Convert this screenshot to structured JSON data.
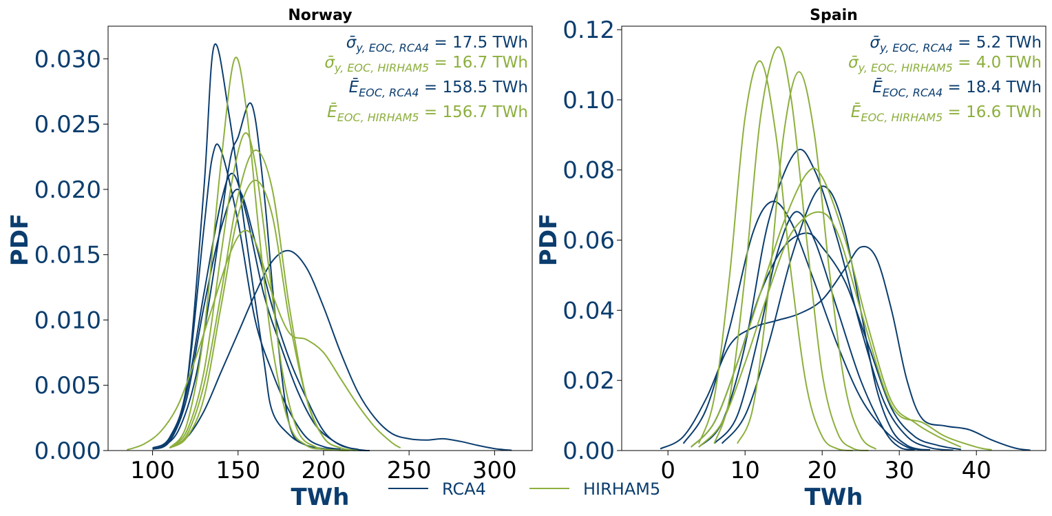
{
  "colors": {
    "RCA4": "#0b3d6e",
    "HIRHAM5": "#8caf3c",
    "text": "#0b3d6e",
    "frame": "#000000"
  },
  "legend": [
    {
      "name": "RCA4",
      "color": "#0b3d6e"
    },
    {
      "name": "HIRHAM5",
      "color": "#8caf3c"
    }
  ],
  "chart_data": [
    {
      "type": "line",
      "title": "Norway",
      "xlabel": "TWh",
      "ylabel": "PDF",
      "xlim": [
        74,
        322
      ],
      "ylim": [
        0,
        0.0325
      ],
      "xticks": [
        "100",
        "150",
        "200",
        "250",
        "300"
      ],
      "xtick_values": [
        100,
        150,
        200,
        250,
        300
      ],
      "yticks": [
        "0.000",
        "0.005",
        "0.010",
        "0.015",
        "0.020",
        "0.025",
        "0.030"
      ],
      "ytick_values": [
        0,
        0.005,
        0.01,
        0.015,
        0.02,
        0.025,
        0.03
      ],
      "annotations": [
        {
          "symbol": "σ̄",
          "sub": "y, EOC, RCA4",
          "value": "= 17.5 TWh",
          "series": "RCA4"
        },
        {
          "symbol": "σ̄",
          "sub": "y, EOC, HIRHAM5",
          "value": "= 16.7 TWh",
          "series": "HIRHAM5"
        },
        {
          "symbol": "Ē",
          "sub": "EOC, RCA4",
          "value": "= 158.5 TWh",
          "series": "RCA4"
        },
        {
          "symbol": "Ē",
          "sub": "EOC, HIRHAM5",
          "value": "= 156.7 TWh",
          "series": "HIRHAM5"
        }
      ],
      "series": [
        {
          "model": "RCA4",
          "x": [
            100,
            110,
            120,
            130,
            136,
            145,
            155,
            165,
            170,
            180,
            190,
            200,
            210,
            220,
            227
          ],
          "y": [
            0.0001,
            0.0009,
            0.005,
            0.02,
            0.031,
            0.0255,
            0.016,
            0.007,
            0.003,
            0.0012,
            0.0004,
            0.00015,
            5e-05,
            1e-05,
            0
          ]
        },
        {
          "model": "RCA4",
          "x": [
            105,
            115,
            125,
            135,
            145,
            150,
            158,
            165,
            172,
            180,
            190,
            200,
            210,
            215
          ],
          "y": [
            0.0002,
            0.0015,
            0.0055,
            0.013,
            0.022,
            0.024,
            0.0265,
            0.02,
            0.01,
            0.002,
            0.0004,
            0.0001,
            2e-05,
            0
          ]
        },
        {
          "model": "RCA4",
          "x": [
            100,
            110,
            120,
            130,
            135,
            140,
            150,
            160,
            170,
            180,
            190,
            200,
            210
          ],
          "y": [
            0.0002,
            0.001,
            0.005,
            0.017,
            0.0225,
            0.023,
            0.0175,
            0.01,
            0.006,
            0.003,
            0.001,
            0.0003,
            0.0001
          ]
        },
        {
          "model": "RCA4",
          "x": [
            100,
            110,
            120,
            130,
            140,
            147,
            155,
            165,
            175,
            185,
            195,
            205,
            215,
            225
          ],
          "y": [
            0.0001,
            0.0008,
            0.0045,
            0.012,
            0.019,
            0.0212,
            0.018,
            0.012,
            0.008,
            0.0045,
            0.002,
            0.0008,
            0.0002,
            0
          ]
        },
        {
          "model": "RCA4",
          "x": [
            110,
            120,
            130,
            140,
            150,
            160,
            170,
            180,
            190,
            200,
            210,
            220,
            230,
            240,
            250,
            260,
            270,
            280,
            290,
            300,
            310
          ],
          "y": [
            0.0002,
            0.001,
            0.003,
            0.006,
            0.009,
            0.012,
            0.0145,
            0.0153,
            0.014,
            0.011,
            0.0075,
            0.0045,
            0.0025,
            0.0013,
            0.0009,
            0.0008,
            0.0009,
            0.0007,
            0.0004,
            0.00015,
            2e-05
          ]
        },
        {
          "model": "RCA4",
          "x": [
            100,
            110,
            120,
            130,
            140,
            150,
            160,
            170,
            180,
            190,
            200,
            210,
            220
          ],
          "y": [
            0.0001,
            0.0007,
            0.004,
            0.011,
            0.017,
            0.02,
            0.016,
            0.011,
            0.007,
            0.004,
            0.0015,
            0.0004,
            0.0001
          ]
        },
        {
          "model": "HIRHAM5",
          "x": [
            110,
            120,
            130,
            140,
            148,
            155,
            162,
            170,
            180,
            190,
            200,
            210,
            215
          ],
          "y": [
            0.0002,
            0.002,
            0.009,
            0.022,
            0.03,
            0.026,
            0.017,
            0.008,
            0.002,
            0.0004,
            0.0001,
            2e-05,
            0
          ]
        },
        {
          "model": "HIRHAM5",
          "x": [
            110,
            120,
            130,
            140,
            147,
            154,
            160,
            168,
            176,
            185,
            195,
            205,
            215
          ],
          "y": [
            0.0002,
            0.0015,
            0.006,
            0.015,
            0.021,
            0.0243,
            0.022,
            0.014,
            0.006,
            0.0015,
            0.0003,
            5e-05,
            0
          ]
        },
        {
          "model": "HIRHAM5",
          "x": [
            110,
            120,
            130,
            140,
            150,
            160,
            170,
            180,
            190,
            200,
            210,
            220
          ],
          "y": [
            0.0002,
            0.0012,
            0.005,
            0.012,
            0.0195,
            0.023,
            0.02,
            0.011,
            0.004,
            0.001,
            0.0002,
            0
          ]
        },
        {
          "model": "HIRHAM5",
          "x": [
            110,
            120,
            130,
            140,
            150,
            160,
            170,
            180,
            190,
            200,
            210,
            220
          ],
          "y": [
            0.0002,
            0.001,
            0.004,
            0.011,
            0.018,
            0.0207,
            0.018,
            0.01,
            0.004,
            0.001,
            0.0002,
            0
          ]
        },
        {
          "model": "HIRHAM5",
          "x": [
            85,
            95,
            105,
            115,
            125,
            135,
            145,
            153,
            160,
            170,
            180,
            190,
            200,
            210,
            220,
            230,
            240,
            245
          ],
          "y": [
            5e-05,
            0.0005,
            0.0015,
            0.0035,
            0.007,
            0.011,
            0.015,
            0.0168,
            0.016,
            0.012,
            0.009,
            0.0085,
            0.0075,
            0.0055,
            0.0035,
            0.0018,
            0.0006,
            0.0002
          ]
        }
      ]
    },
    {
      "type": "line",
      "title": "Spain",
      "xlabel": "TWh",
      "ylabel": "PDF",
      "xlim": [
        -6,
        49
      ],
      "ylim": [
        0,
        0.121
      ],
      "xticks": [
        "0",
        "10",
        "20",
        "30",
        "40"
      ],
      "xtick_values": [
        0,
        10,
        20,
        30,
        40
      ],
      "yticks": [
        "0.00",
        "0.02",
        "0.04",
        "0.06",
        "0.08",
        "0.10",
        "0.12"
      ],
      "ytick_values": [
        0,
        0.02,
        0.04,
        0.06,
        0.08,
        0.1,
        0.12
      ],
      "annotations": [
        {
          "symbol": "σ̄",
          "sub": "y, EOC, RCA4",
          "value": "= 5.2 TWh",
          "series": "RCA4"
        },
        {
          "symbol": "σ̄",
          "sub": "y, EOC, HIRHAM5",
          "value": "= 4.0 TWh",
          "series": "HIRHAM5"
        },
        {
          "symbol": "Ē",
          "sub": "EOC, RCA4",
          "value": "= 18.4 TWh",
          "series": "RCA4"
        },
        {
          "symbol": "Ē",
          "sub": "EOC, HIRHAM5",
          "value": "= 16.6 TWh",
          "series": "HIRHAM5"
        }
      ],
      "series": [
        {
          "model": "RCA4",
          "x": [
            2,
            5,
            8,
            11,
            13.5,
            16,
            19,
            22,
            25,
            28,
            31,
            34
          ],
          "y": [
            0.002,
            0.012,
            0.035,
            0.062,
            0.071,
            0.065,
            0.048,
            0.03,
            0.015,
            0.006,
            0.001,
            0.0002
          ]
        },
        {
          "model": "RCA4",
          "x": [
            4,
            7,
            10,
            13,
            16.5,
            19,
            22,
            25,
            28,
            31,
            34,
            37
          ],
          "y": [
            0.001,
            0.008,
            0.03,
            0.065,
            0.085,
            0.08,
            0.06,
            0.035,
            0.014,
            0.004,
            0.0008,
            0.0001
          ]
        },
        {
          "model": "RCA4",
          "x": [
            6,
            9,
            12,
            14,
            16.5,
            19,
            22,
            25,
            28,
            30,
            32
          ],
          "y": [
            0.002,
            0.01,
            0.035,
            0.055,
            0.068,
            0.06,
            0.04,
            0.02,
            0.006,
            0.001,
            0.0002
          ]
        },
        {
          "model": "RCA4",
          "x": [
            7,
            10,
            13,
            16,
            19,
            21,
            23,
            25,
            27,
            29,
            31,
            33
          ],
          "y": [
            0.002,
            0.01,
            0.03,
            0.055,
            0.073,
            0.074,
            0.062,
            0.04,
            0.018,
            0.006,
            0.0015,
            0.0002
          ]
        },
        {
          "model": "RCA4",
          "x": [
            -1,
            2,
            5,
            8,
            11,
            14,
            17,
            20,
            23,
            25,
            27,
            29,
            31,
            33,
            36,
            39,
            42,
            45,
            47
          ],
          "y": [
            0.0005,
            0.004,
            0.015,
            0.03,
            0.035,
            0.037,
            0.039,
            0.043,
            0.052,
            0.058,
            0.055,
            0.04,
            0.02,
            0.009,
            0.007,
            0.006,
            0.003,
            0.0007,
            0.0001
          ]
        },
        {
          "model": "RCA4",
          "x": [
            3,
            6,
            9,
            12,
            15,
            18,
            20,
            23,
            26,
            29,
            32,
            35,
            38
          ],
          "y": [
            0.001,
            0.008,
            0.025,
            0.045,
            0.058,
            0.062,
            0.058,
            0.048,
            0.03,
            0.012,
            0.004,
            0.0015,
            0.0003
          ]
        },
        {
          "model": "HIRHAM5",
          "x": [
            4,
            6,
            8,
            10,
            12,
            14,
            16,
            18,
            20,
            22,
            24
          ],
          "y": [
            0.002,
            0.015,
            0.05,
            0.095,
            0.111,
            0.09,
            0.05,
            0.018,
            0.004,
            0.0005,
            0
          ]
        },
        {
          "model": "HIRHAM5",
          "x": [
            6,
            8,
            10,
            12,
            14.2,
            16,
            18,
            20,
            22,
            24,
            26
          ],
          "y": [
            0.002,
            0.015,
            0.05,
            0.095,
            0.115,
            0.1,
            0.06,
            0.022,
            0.005,
            0.0006,
            0
          ]
        },
        {
          "model": "HIRHAM5",
          "x": [
            9,
            11,
            13,
            15,
            17,
            19,
            21,
            23,
            25,
            27
          ],
          "y": [
            0.002,
            0.012,
            0.045,
            0.09,
            0.108,
            0.09,
            0.05,
            0.018,
            0.004,
            0.0004
          ]
        },
        {
          "model": "HIRHAM5",
          "x": [
            3,
            6,
            9,
            12,
            15,
            18,
            20,
            23,
            26,
            29,
            32,
            35,
            38
          ],
          "y": [
            0.001,
            0.008,
            0.025,
            0.045,
            0.065,
            0.079,
            0.078,
            0.06,
            0.035,
            0.014,
            0.008,
            0.004,
            0.001
          ]
        },
        {
          "model": "HIRHAM5",
          "x": [
            4,
            7,
            10,
            13,
            16,
            19.5,
            22,
            25,
            28,
            30,
            33,
            36,
            40,
            42
          ],
          "y": [
            0.001,
            0.008,
            0.025,
            0.045,
            0.062,
            0.068,
            0.062,
            0.04,
            0.018,
            0.01,
            0.008,
            0.004,
            0.001,
            0.0002
          ]
        }
      ]
    }
  ]
}
